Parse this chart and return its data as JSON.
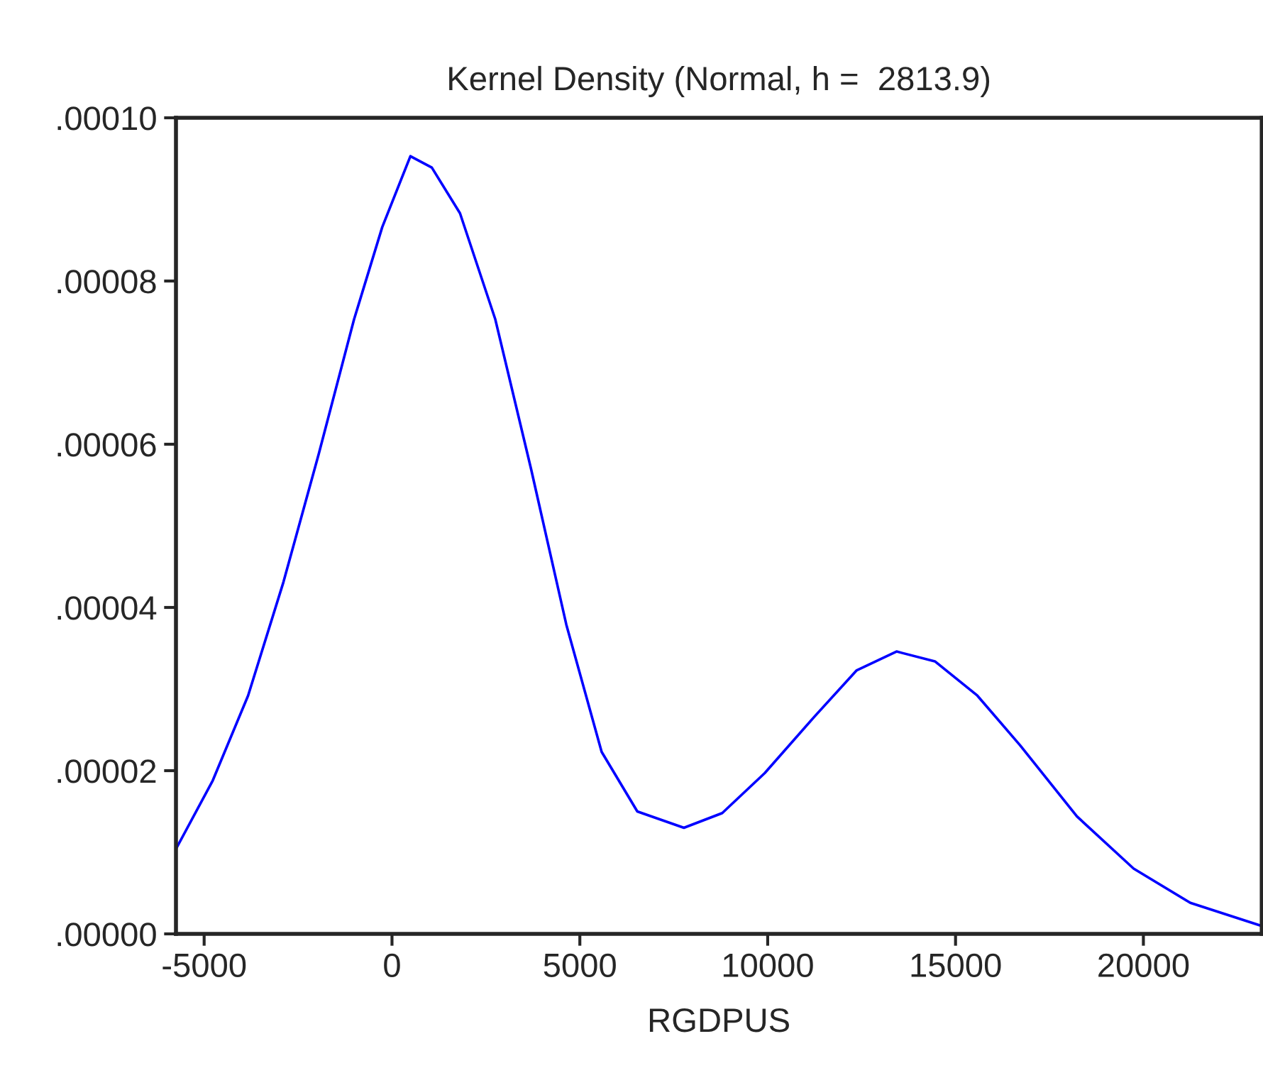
{
  "chart_data": {
    "type": "line",
    "title": "Kernel Density (Normal, h =  2813.9)",
    "xlabel": "RGDPUS",
    "x": [
      -5750,
      -4770,
      -3830,
      -2890,
      -1950,
      -1010,
      -260,
      490,
      1060,
      1810,
      2750,
      3700,
      4640,
      5580,
      6530,
      7770,
      8790,
      9920,
      11240,
      12370,
      13430,
      14450,
      15580,
      16720,
      18230,
      19740,
      21250,
      23130
    ],
    "series": [
      {
        "color": "#0000ff",
        "values": [
          1.04e-05,
          1.88e-05,
          2.92e-05,
          4.31e-05,
          5.88e-05,
          7.53e-05,
          8.66e-05,
          9.53e-05,
          9.39e-05,
          8.83e-05,
          7.53e-05,
          5.7e-05,
          3.79e-05,
          2.23e-05,
          1.5e-05,
          1.3e-05,
          1.48e-05,
          1.97e-05,
          2.66e-05,
          3.23e-05,
          3.46e-05,
          3.34e-05,
          2.92e-05,
          2.31e-05,
          1.44e-05,
          8e-06,
          3.8e-06,
          1e-06
        ]
      }
    ],
    "xlim": [
      -5750,
      23150
    ],
    "ylim": [
      0,
      0.0001
    ],
    "xticks": [
      -5000,
      0,
      5000,
      10000,
      15000,
      20000
    ],
    "yticks": [
      {
        "value": 0,
        "label": ".00000"
      },
      {
        "value": 2e-05,
        "label": ".00002"
      },
      {
        "value": 4e-05,
        "label": ".00004"
      },
      {
        "value": 6e-05,
        "label": ".00006"
      },
      {
        "value": 8e-05,
        "label": ".00008"
      },
      {
        "value": 0.0001,
        "label": ".00010"
      }
    ],
    "grid": false,
    "legend": false,
    "marker": "none",
    "line_style": "solid"
  }
}
